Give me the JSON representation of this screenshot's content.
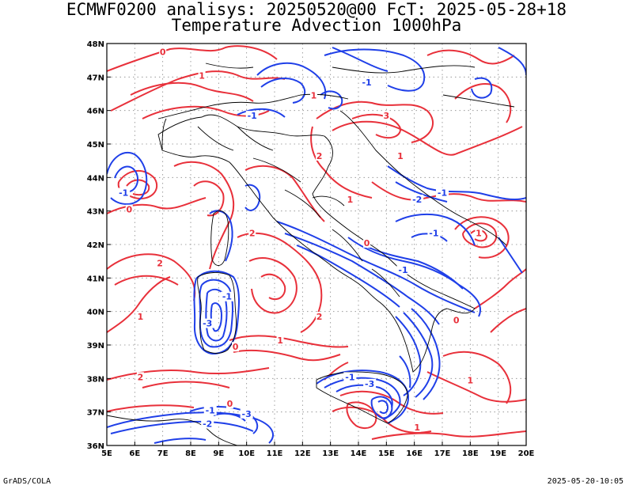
{
  "title": {
    "line1": "ECMWF0200 analisys: 20250520@00 FcT: 2025-05-28+18",
    "line2": "Temperature Advection 1000hPa"
  },
  "footer": {
    "left": "GrADS/COLA",
    "right": "2025-05-20-10:05"
  },
  "map": {
    "lon_ticks": [
      "5E",
      "6E",
      "7E",
      "8E",
      "9E",
      "10E",
      "11E",
      "12E",
      "13E",
      "14E",
      "15E",
      "16E",
      "17E",
      "18E",
      "19E",
      "20E"
    ],
    "lat_ticks": [
      "36N",
      "37N",
      "38N",
      "39N",
      "40N",
      "41N",
      "42N",
      "43N",
      "44N",
      "45N",
      "46N",
      "47N",
      "48N"
    ],
    "lon_range": [
      5,
      20
    ],
    "lat_range": [
      36,
      48
    ],
    "grid": "dotted",
    "colors": {
      "positive_contour": "#e8303a",
      "negative_contour": "#1f3fe8",
      "coastline": "#000000",
      "grid": "#888888"
    },
    "contour_labels": [
      {
        "text": "0",
        "lon": 7.0,
        "lat": 47.7,
        "sign": "pos"
      },
      {
        "text": "1",
        "lon": 8.4,
        "lat": 47.0,
        "sign": "pos"
      },
      {
        "text": "-1",
        "lon": 14.3,
        "lat": 46.8,
        "sign": "neg"
      },
      {
        "text": "1",
        "lon": 12.4,
        "lat": 46.4,
        "sign": "pos"
      },
      {
        "text": "3",
        "lon": 15.0,
        "lat": 45.8,
        "sign": "pos"
      },
      {
        "text": "-1",
        "lon": 10.2,
        "lat": 45.8,
        "sign": "neg"
      },
      {
        "text": "2",
        "lon": 12.6,
        "lat": 44.6,
        "sign": "pos"
      },
      {
        "text": "1",
        "lon": 15.5,
        "lat": 44.6,
        "sign": "pos"
      },
      {
        "text": "-1",
        "lon": 5.6,
        "lat": 43.5,
        "sign": "neg"
      },
      {
        "text": "-2",
        "lon": 16.1,
        "lat": 43.3,
        "sign": "neg"
      },
      {
        "text": "-1",
        "lon": 17.0,
        "lat": 43.5,
        "sign": "neg"
      },
      {
        "text": "0",
        "lon": 5.8,
        "lat": 43.0,
        "sign": "pos"
      },
      {
        "text": "1",
        "lon": 13.7,
        "lat": 43.3,
        "sign": "pos"
      },
      {
        "text": "2",
        "lon": 10.2,
        "lat": 42.3,
        "sign": "pos"
      },
      {
        "text": "-1",
        "lon": 16.7,
        "lat": 42.3,
        "sign": "neg"
      },
      {
        "text": "0",
        "lon": 14.3,
        "lat": 42.0,
        "sign": "pos"
      },
      {
        "text": "1",
        "lon": 18.3,
        "lat": 42.3,
        "sign": "pos"
      },
      {
        "text": "2",
        "lon": 6.9,
        "lat": 41.4,
        "sign": "pos"
      },
      {
        "text": "-1",
        "lon": 15.6,
        "lat": 41.2,
        "sign": "neg"
      },
      {
        "text": "-1",
        "lon": 9.3,
        "lat": 40.4,
        "sign": "neg"
      },
      {
        "text": "-3",
        "lon": 8.6,
        "lat": 39.6,
        "sign": "neg"
      },
      {
        "text": "1",
        "lon": 6.2,
        "lat": 39.8,
        "sign": "pos"
      },
      {
        "text": "2",
        "lon": 12.6,
        "lat": 39.8,
        "sign": "pos"
      },
      {
        "text": "0",
        "lon": 17.5,
        "lat": 39.7,
        "sign": "pos"
      },
      {
        "text": "1",
        "lon": 11.2,
        "lat": 39.1,
        "sign": "pos"
      },
      {
        "text": "0",
        "lon": 9.6,
        "lat": 38.9,
        "sign": "pos"
      },
      {
        "text": "0",
        "lon": 9.4,
        "lat": 37.2,
        "sign": "pos"
      },
      {
        "text": "-1",
        "lon": 13.7,
        "lat": 38.0,
        "sign": "neg"
      },
      {
        "text": "-3",
        "lon": 14.4,
        "lat": 37.8,
        "sign": "neg"
      },
      {
        "text": "1",
        "lon": 18.0,
        "lat": 37.9,
        "sign": "pos"
      },
      {
        "text": "-1",
        "lon": 8.7,
        "lat": 37.0,
        "sign": "neg"
      },
      {
        "text": "-2",
        "lon": 8.6,
        "lat": 36.6,
        "sign": "neg"
      },
      {
        "text": "-3",
        "lon": 10.0,
        "lat": 36.9,
        "sign": "neg"
      },
      {
        "text": "1",
        "lon": 16.1,
        "lat": 36.5,
        "sign": "pos"
      },
      {
        "text": "2",
        "lon": 6.2,
        "lat": 38.0,
        "sign": "pos"
      }
    ]
  }
}
